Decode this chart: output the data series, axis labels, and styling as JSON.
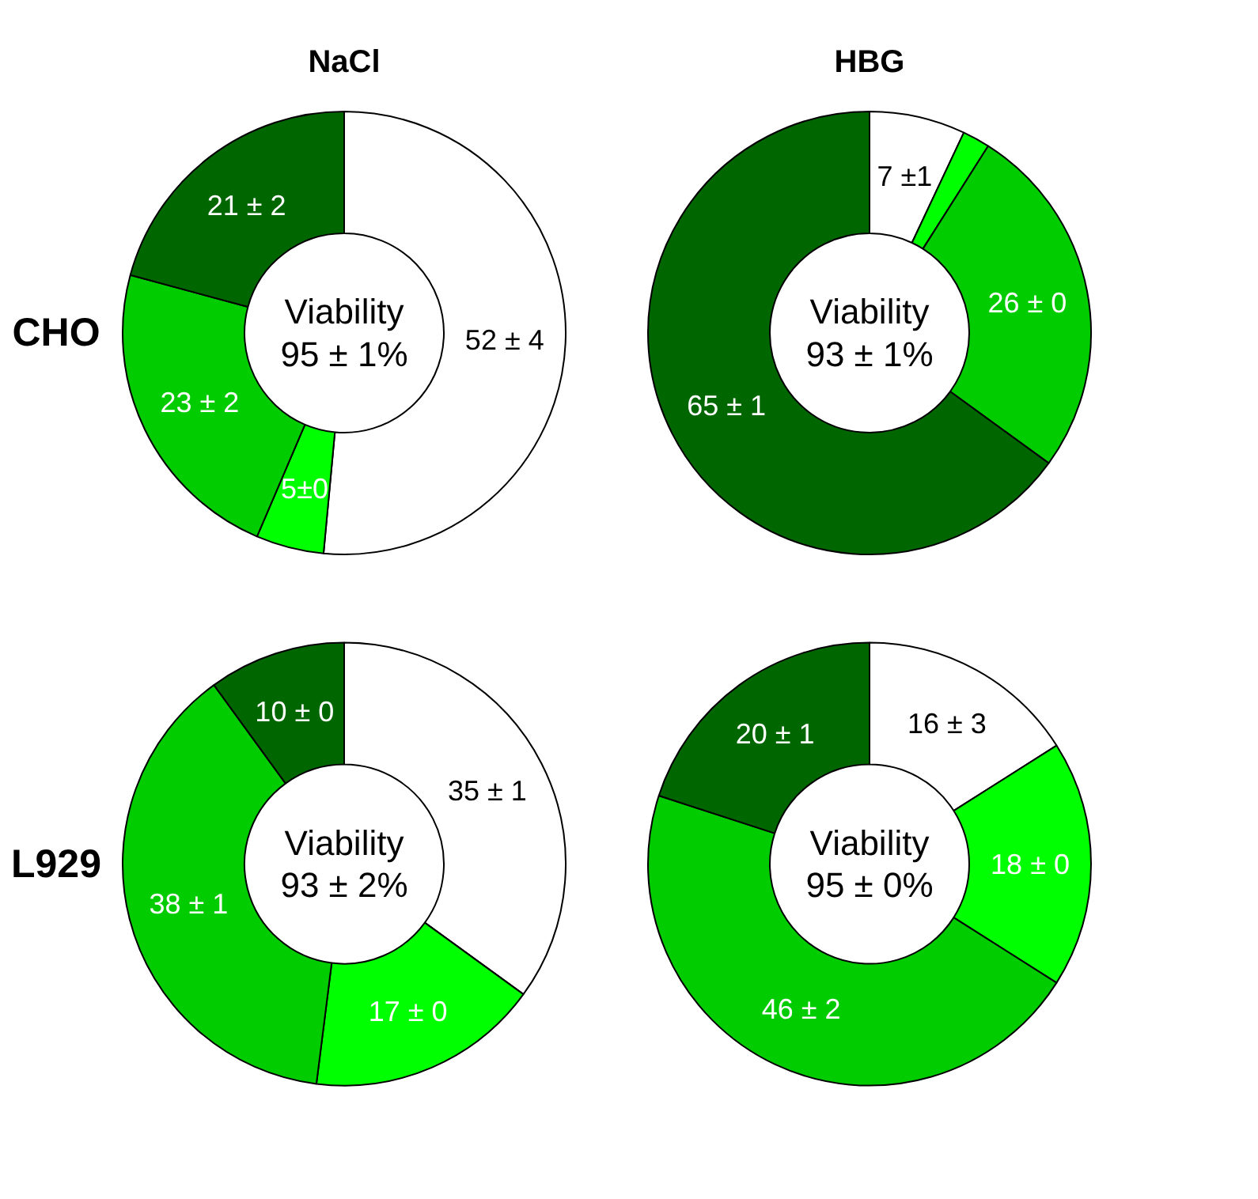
{
  "chart_data": [
    {
      "type": "donut",
      "title": "NaCl",
      "ylabel": "CHO",
      "categories": [
        null,
        null,
        null,
        null
      ],
      "values": [
        52,
        5,
        23,
        21
      ],
      "colors": [
        "#ffffff",
        "#00ff00",
        "#00cc00",
        "#006600"
      ],
      "value_labels": [
        "52 ± 4",
        "5±0",
        "23 ± 2",
        "21 ± 2"
      ],
      "annotations": [
        "Viability\n95 ± 1%"
      ]
    },
    {
      "type": "donut",
      "title": "HBG",
      "categories": [
        null,
        null,
        null,
        null
      ],
      "values": [
        7,
        2,
        26,
        65
      ],
      "colors": [
        "#ffffff",
        "#00ff00",
        "#00cc00",
        "#006600"
      ],
      "value_labels": [
        "7 ±1",
        null,
        "26 ± 0",
        "65 ± 1"
      ],
      "annotations": [
        "Viability\n93 ± 1%"
      ]
    },
    {
      "type": "donut",
      "ylabel": "L929",
      "categories": [
        null,
        null,
        null,
        null
      ],
      "values": [
        35,
        17,
        38,
        10
      ],
      "colors": [
        "#ffffff",
        "#00ff00",
        "#00cc00",
        "#006600"
      ],
      "value_labels": [
        "35 ± 1",
        "17 ± 0",
        "38 ± 1",
        "10 ± 0"
      ],
      "annotations": [
        "Viability\n93 ± 2%"
      ]
    },
    {
      "type": "donut",
      "categories": [
        null,
        null,
        null,
        null
      ],
      "values": [
        16,
        18,
        46,
        20
      ],
      "colors": [
        "#ffffff",
        "#00ff00",
        "#00cc00",
        "#006600"
      ],
      "value_labels": [
        "16 ± 3",
        "18 ± 0",
        "46 ± 2",
        "20 ± 1"
      ],
      "annotations": [
        "Viability\n95 ± 0%"
      ]
    }
  ]
}
